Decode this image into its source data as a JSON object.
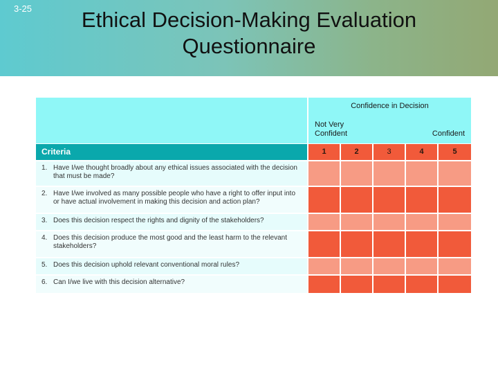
{
  "slide_number": "3-25",
  "title_line1": "Ethical Decision-Making Evaluation",
  "title_line2": "Questionnaire",
  "table": {
    "confidence_heading": "Confidence in Decision",
    "low_label_line1": "Not Very",
    "low_label_line2": "Confident",
    "high_label": "Confident",
    "criteria_heading": "Criteria",
    "scale": [
      "1",
      "2",
      "3",
      "4",
      "5"
    ],
    "questions": [
      {
        "num": "1.",
        "text": "Have I/we thought broadly about any ethical issues associated with the decision that must be made?"
      },
      {
        "num": "2.",
        "text": "Have I/we involved as many possible people who have a right to offer input into or have actual involvement in making this decision and action plan?"
      },
      {
        "num": "3.",
        "text": "Does this decision respect the rights and dignity of the stakeholders?"
      },
      {
        "num": "4.",
        "text": "Does this decision produce the most good and the least harm to the relevant stakeholders?"
      },
      {
        "num": "5.",
        "text": "Does this decision uphold relevant conventional moral rules?"
      },
      {
        "num": "6.",
        "text": "Can I/we live with this decision alternative?"
      }
    ]
  },
  "colors": {
    "header_teal": "#5ecad0",
    "criteria_bar": "#0aa8ac",
    "answer_pale": "#f79b84",
    "answer_bright": "#f15a3a"
  }
}
